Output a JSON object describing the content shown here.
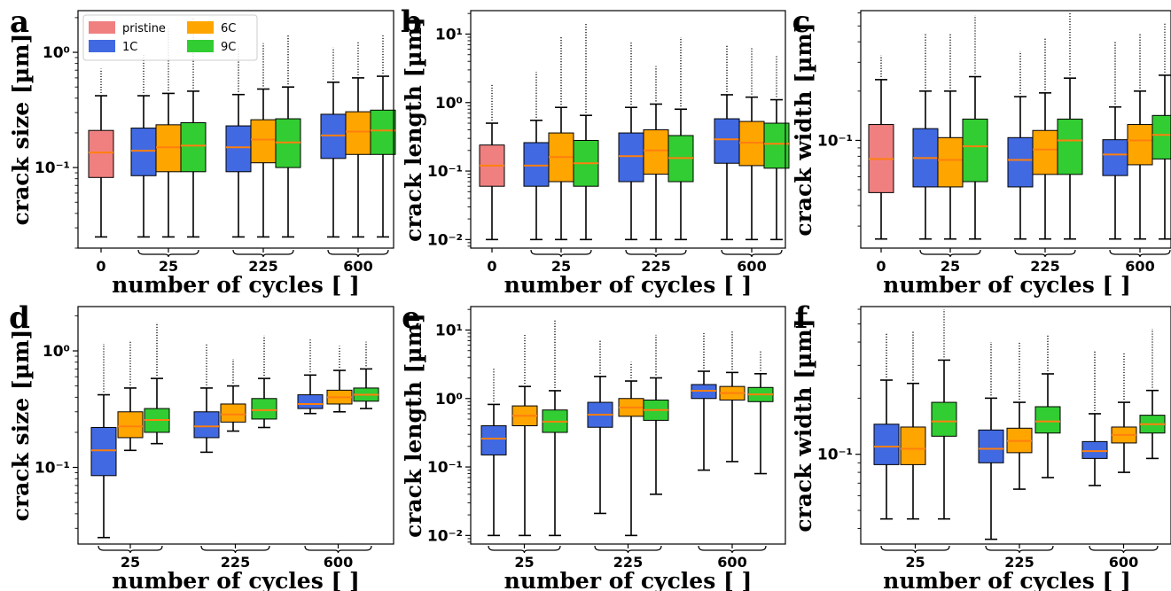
{
  "figure_labels": [
    "a",
    "b",
    "c",
    "d",
    "e",
    "f"
  ],
  "legend": {
    "entries": [
      {
        "label": "pristine",
        "color": "#f08080"
      },
      {
        "label": "1C",
        "color": "#4169e1"
      },
      {
        "label": "6C",
        "color": "#ffa500"
      },
      {
        "label": "9C",
        "color": "#32cd32"
      }
    ]
  },
  "colors": {
    "pristine": "#f08080",
    "1C": "#4169e1",
    "6C": "#ffa500",
    "9C": "#32cd32",
    "median": "#ff7f0e"
  },
  "chart_data": [
    {
      "panel": "a",
      "type": "box",
      "yscale": "log",
      "ylim": [
        0.02,
        2.3
      ],
      "ylabel": "crack size [µm]",
      "xlabel": "number of cycles [ ]",
      "yticks": [
        {
          "v": 0.1,
          "label": "10⁻¹"
        },
        {
          "v": 1,
          "label": "10⁰"
        }
      ],
      "groups": [
        "0",
        "25",
        "225",
        "600"
      ],
      "boxes": [
        {
          "group": 0,
          "series": "pristine",
          "q1": 0.082,
          "median": 0.135,
          "q3": 0.21,
          "whislo": 0.025,
          "whishi": 0.42,
          "flier_max": 0.72
        },
        {
          "group": 1,
          "series": "1C",
          "q1": 0.085,
          "median": 0.14,
          "q3": 0.22,
          "whislo": 0.025,
          "whishi": 0.42,
          "flier_max": 0.95
        },
        {
          "group": 1,
          "series": "6C",
          "q1": 0.092,
          "median": 0.15,
          "q3": 0.235,
          "whislo": 0.025,
          "whishi": 0.44,
          "flier_max": 1.6
        },
        {
          "group": 1,
          "series": "9C",
          "q1": 0.092,
          "median": 0.155,
          "q3": 0.245,
          "whislo": 0.025,
          "whishi": 0.46,
          "flier_max": 2.0
        },
        {
          "group": 2,
          "series": "1C",
          "q1": 0.092,
          "median": 0.15,
          "q3": 0.23,
          "whislo": 0.025,
          "whishi": 0.43,
          "flier_max": 1.1
        },
        {
          "group": 2,
          "series": "6C",
          "q1": 0.11,
          "median": 0.175,
          "q3": 0.26,
          "whislo": 0.025,
          "whishi": 0.48,
          "flier_max": 1.2
        },
        {
          "group": 2,
          "series": "9C",
          "q1": 0.1,
          "median": 0.165,
          "q3": 0.265,
          "whislo": 0.025,
          "whishi": 0.5,
          "flier_max": 1.4
        },
        {
          "group": 3,
          "series": "1C",
          "q1": 0.12,
          "median": 0.19,
          "q3": 0.29,
          "whislo": 0.025,
          "whishi": 0.55,
          "flier_max": 1.1
        },
        {
          "group": 3,
          "series": "6C",
          "q1": 0.13,
          "median": 0.205,
          "q3": 0.305,
          "whislo": 0.025,
          "whishi": 0.6,
          "flier_max": 1.25
        },
        {
          "group": 3,
          "series": "9C",
          "q1": 0.13,
          "median": 0.21,
          "q3": 0.315,
          "whislo": 0.025,
          "whishi": 0.62,
          "flier_max": 1.4
        }
      ]
    },
    {
      "panel": "b",
      "type": "box",
      "yscale": "log",
      "ylim": [
        0.0075,
        22
      ],
      "ylabel": "crack length [µm]",
      "xlabel": "number of cycles [ ]",
      "yticks": [
        {
          "v": 0.01,
          "label": "10⁻²"
        },
        {
          "v": 0.1,
          "label": "10⁻¹"
        },
        {
          "v": 1,
          "label": "10⁰"
        },
        {
          "v": 10,
          "label": "10¹"
        }
      ],
      "groups": [
        "0",
        "25",
        "225",
        "600"
      ],
      "boxes": [
        {
          "group": 0,
          "series": "pristine",
          "q1": 0.06,
          "median": 0.12,
          "q3": 0.24,
          "whislo": 0.01,
          "whishi": 0.5,
          "flier_max": 1.9
        },
        {
          "group": 1,
          "series": "1C",
          "q1": 0.06,
          "median": 0.12,
          "q3": 0.26,
          "whislo": 0.01,
          "whishi": 0.55,
          "flier_max": 2.8
        },
        {
          "group": 1,
          "series": "6C",
          "q1": 0.07,
          "median": 0.16,
          "q3": 0.36,
          "whislo": 0.01,
          "whishi": 0.85,
          "flier_max": 9.0
        },
        {
          "group": 1,
          "series": "9C",
          "q1": 0.06,
          "median": 0.13,
          "q3": 0.28,
          "whislo": 0.01,
          "whishi": 0.65,
          "flier_max": 14.5
        },
        {
          "group": 2,
          "series": "1C",
          "q1": 0.07,
          "median": 0.165,
          "q3": 0.36,
          "whislo": 0.01,
          "whishi": 0.85,
          "flier_max": 7.5
        },
        {
          "group": 2,
          "series": "6C",
          "q1": 0.09,
          "median": 0.2,
          "q3": 0.4,
          "whislo": 0.01,
          "whishi": 0.95,
          "flier_max": 3.4
        },
        {
          "group": 2,
          "series": "9C",
          "q1": 0.07,
          "median": 0.155,
          "q3": 0.33,
          "whislo": 0.01,
          "whishi": 0.8,
          "flier_max": 9.0
        },
        {
          "group": 3,
          "series": "1C",
          "q1": 0.13,
          "median": 0.29,
          "q3": 0.58,
          "whislo": 0.01,
          "whishi": 1.3,
          "flier_max": 7.0
        },
        {
          "group": 3,
          "series": "6C",
          "q1": 0.12,
          "median": 0.26,
          "q3": 0.53,
          "whislo": 0.01,
          "whishi": 1.2,
          "flier_max": 6.5
        },
        {
          "group": 3,
          "series": "9C",
          "q1": 0.11,
          "median": 0.25,
          "q3": 0.5,
          "whislo": 0.01,
          "whishi": 1.1,
          "flier_max": 5.0
        }
      ]
    },
    {
      "panel": "c",
      "type": "box",
      "yscale": "log",
      "ylim": [
        0.022,
        0.62
      ],
      "ylabel": "crack width [µm]",
      "xlabel": "number of cycles [ ]",
      "yticks": [
        {
          "v": 0.1,
          "label": "10⁻¹"
        }
      ],
      "groups": [
        "0",
        "25",
        "225",
        "600"
      ],
      "boxes": [
        {
          "group": 0,
          "series": "pristine",
          "q1": 0.048,
          "median": 0.077,
          "q3": 0.125,
          "whislo": 0.025,
          "whishi": 0.235,
          "flier_max": 0.33
        },
        {
          "group": 1,
          "series": "1C",
          "q1": 0.052,
          "median": 0.078,
          "q3": 0.118,
          "whislo": 0.025,
          "whishi": 0.2,
          "flier_max": 0.45
        },
        {
          "group": 1,
          "series": "6C",
          "q1": 0.052,
          "median": 0.076,
          "q3": 0.104,
          "whislo": 0.025,
          "whishi": 0.2,
          "flier_max": 0.45
        },
        {
          "group": 1,
          "series": "9C",
          "q1": 0.056,
          "median": 0.092,
          "q3": 0.135,
          "whislo": 0.025,
          "whishi": 0.245,
          "flier_max": 0.58
        },
        {
          "group": 2,
          "series": "1C",
          "q1": 0.052,
          "median": 0.076,
          "q3": 0.104,
          "whislo": 0.025,
          "whishi": 0.185,
          "flier_max": 0.35
        },
        {
          "group": 2,
          "series": "6C",
          "q1": 0.062,
          "median": 0.088,
          "q3": 0.115,
          "whislo": 0.025,
          "whishi": 0.195,
          "flier_max": 0.42
        },
        {
          "group": 2,
          "series": "9C",
          "q1": 0.062,
          "median": 0.1,
          "q3": 0.135,
          "whislo": 0.025,
          "whishi": 0.24,
          "flier_max": 0.6
        },
        {
          "group": 3,
          "series": "1C",
          "q1": 0.061,
          "median": 0.082,
          "q3": 0.101,
          "whislo": 0.025,
          "whishi": 0.16,
          "flier_max": 0.4
        },
        {
          "group": 3,
          "series": "6C",
          "q1": 0.071,
          "median": 0.1,
          "q3": 0.125,
          "whislo": 0.025,
          "whishi": 0.2,
          "flier_max": 0.45
        },
        {
          "group": 3,
          "series": "9C",
          "q1": 0.077,
          "median": 0.108,
          "q3": 0.142,
          "whislo": 0.025,
          "whishi": 0.25,
          "flier_max": 0.52
        }
      ]
    },
    {
      "panel": "d",
      "type": "box",
      "yscale": "log",
      "ylim": [
        0.022,
        2.4
      ],
      "ylabel": "crack size [µm]",
      "xlabel": "number of cycles [ ]",
      "yticks": [
        {
          "v": 0.1,
          "label": "10⁻¹"
        },
        {
          "v": 1,
          "label": "10⁰"
        }
      ],
      "groups": [
        "25",
        "225",
        "600"
      ],
      "boxes": [
        {
          "group": 0,
          "series": "1C",
          "q1": 0.085,
          "median": 0.14,
          "q3": 0.22,
          "whislo": 0.025,
          "whishi": 0.42,
          "flier_max": 1.15
        },
        {
          "group": 0,
          "series": "6C",
          "q1": 0.18,
          "median": 0.225,
          "q3": 0.3,
          "whislo": 0.14,
          "whishi": 0.48,
          "flier_max": 1.2
        },
        {
          "group": 0,
          "series": "9C",
          "q1": 0.2,
          "median": 0.255,
          "q3": 0.32,
          "whislo": 0.16,
          "whishi": 0.58,
          "flier_max": 1.75
        },
        {
          "group": 1,
          "series": "1C",
          "q1": 0.18,
          "median": 0.225,
          "q3": 0.3,
          "whislo": 0.135,
          "whishi": 0.48,
          "flier_max": 1.15
        },
        {
          "group": 1,
          "series": "6C",
          "q1": 0.245,
          "median": 0.285,
          "q3": 0.35,
          "whislo": 0.205,
          "whishi": 0.5,
          "flier_max": 0.85
        },
        {
          "group": 1,
          "series": "9C",
          "q1": 0.26,
          "median": 0.31,
          "q3": 0.39,
          "whislo": 0.22,
          "whishi": 0.58,
          "flier_max": 1.35
        },
        {
          "group": 2,
          "series": "1C",
          "q1": 0.32,
          "median": 0.35,
          "q3": 0.42,
          "whislo": 0.29,
          "whishi": 0.62,
          "flier_max": 1.25
        },
        {
          "group": 2,
          "series": "6C",
          "q1": 0.35,
          "median": 0.4,
          "q3": 0.46,
          "whislo": 0.3,
          "whishi": 0.68,
          "flier_max": 1.1
        },
        {
          "group": 2,
          "series": "9C",
          "q1": 0.37,
          "median": 0.42,
          "q3": 0.48,
          "whislo": 0.32,
          "whishi": 0.7,
          "flier_max": 1.2
        }
      ]
    },
    {
      "panel": "e",
      "type": "box",
      "yscale": "log",
      "ylim": [
        0.0075,
        22
      ],
      "ylabel": "crack length [µm]",
      "xlabel": "number of cycles [ ]",
      "yticks": [
        {
          "v": 0.01,
          "label": "10⁻²"
        },
        {
          "v": 0.1,
          "label": "10⁻¹"
        },
        {
          "v": 1,
          "label": "10⁰"
        },
        {
          "v": 10,
          "label": "10¹"
        }
      ],
      "groups": [
        "25",
        "225",
        "600"
      ],
      "boxes": [
        {
          "group": 0,
          "series": "1C",
          "q1": 0.15,
          "median": 0.26,
          "q3": 0.4,
          "whislo": 0.01,
          "whishi": 0.82,
          "flier_max": 2.8
        },
        {
          "group": 0,
          "series": "6C",
          "q1": 0.4,
          "median": 0.56,
          "q3": 0.78,
          "whislo": 0.01,
          "whishi": 1.5,
          "flier_max": 8.5
        },
        {
          "group": 0,
          "series": "9C",
          "q1": 0.32,
          "median": 0.46,
          "q3": 0.68,
          "whislo": 0.01,
          "whishi": 1.3,
          "flier_max": 14.0
        },
        {
          "group": 1,
          "series": "1C",
          "q1": 0.38,
          "median": 0.58,
          "q3": 0.88,
          "whislo": 0.021,
          "whishi": 2.1,
          "flier_max": 7.0
        },
        {
          "group": 1,
          "series": "6C",
          "q1": 0.55,
          "median": 0.74,
          "q3": 1.0,
          "whislo": 0.01,
          "whishi": 1.8,
          "flier_max": 3.4
        },
        {
          "group": 1,
          "series": "9C",
          "q1": 0.48,
          "median": 0.68,
          "q3": 0.95,
          "whislo": 0.04,
          "whishi": 2.0,
          "flier_max": 8.5
        },
        {
          "group": 2,
          "series": "1C",
          "q1": 1.0,
          "median": 1.3,
          "q3": 1.6,
          "whislo": 0.09,
          "whishi": 2.5,
          "flier_max": 9.0
        },
        {
          "group": 2,
          "series": "6C",
          "q1": 0.95,
          "median": 1.2,
          "q3": 1.5,
          "whislo": 0.12,
          "whishi": 2.4,
          "flier_max": 9.5
        },
        {
          "group": 2,
          "series": "9C",
          "q1": 0.9,
          "median": 1.15,
          "q3": 1.45,
          "whislo": 0.08,
          "whishi": 2.3,
          "flier_max": 5.0
        }
      ]
    },
    {
      "panel": "f",
      "type": "box",
      "yscale": "log",
      "ylim": [
        0.033,
        0.62
      ],
      "ylabel": "crack width [µm]",
      "xlabel": "number of cycles [ ]",
      "yticks": [
        {
          "v": 0.1,
          "label": "10⁻¹"
        }
      ],
      "groups": [
        "25",
        "225",
        "600"
      ],
      "boxes": [
        {
          "group": 0,
          "series": "1C",
          "q1": 0.088,
          "median": 0.11,
          "q3": 0.145,
          "whislo": 0.045,
          "whishi": 0.25,
          "flier_max": 0.45
        },
        {
          "group": 0,
          "series": "6C",
          "q1": 0.088,
          "median": 0.107,
          "q3": 0.14,
          "whislo": 0.045,
          "whishi": 0.24,
          "flier_max": 0.46
        },
        {
          "group": 0,
          "series": "9C",
          "q1": 0.125,
          "median": 0.15,
          "q3": 0.19,
          "whislo": 0.045,
          "whishi": 0.32,
          "flier_max": 0.6
        },
        {
          "group": 1,
          "series": "1C",
          "q1": 0.09,
          "median": 0.107,
          "q3": 0.135,
          "whislo": 0.035,
          "whishi": 0.2,
          "flier_max": 0.4
        },
        {
          "group": 1,
          "series": "6C",
          "q1": 0.102,
          "median": 0.118,
          "q3": 0.138,
          "whislo": 0.065,
          "whishi": 0.19,
          "flier_max": 0.4
        },
        {
          "group": 1,
          "series": "9C",
          "q1": 0.13,
          "median": 0.15,
          "q3": 0.18,
          "whislo": 0.075,
          "whishi": 0.27,
          "flier_max": 0.44
        },
        {
          "group": 2,
          "series": "1C",
          "q1": 0.095,
          "median": 0.104,
          "q3": 0.117,
          "whislo": 0.068,
          "whishi": 0.165,
          "flier_max": 0.36
        },
        {
          "group": 2,
          "series": "6C",
          "q1": 0.115,
          "median": 0.127,
          "q3": 0.14,
          "whislo": 0.08,
          "whishi": 0.19,
          "flier_max": 0.35
        },
        {
          "group": 2,
          "series": "9C",
          "q1": 0.13,
          "median": 0.145,
          "q3": 0.162,
          "whislo": 0.095,
          "whishi": 0.22,
          "flier_max": 0.47
        }
      ]
    }
  ]
}
